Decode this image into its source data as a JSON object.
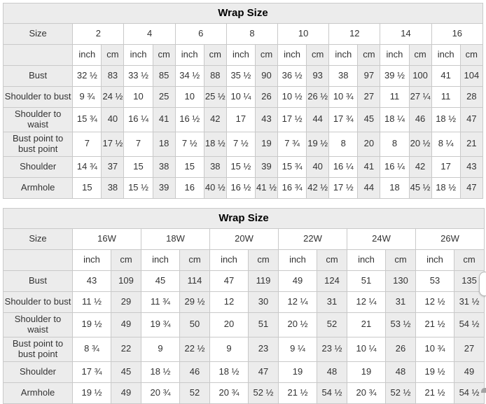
{
  "page": {
    "background": "#ffffff",
    "border_color": "#c9c9c9",
    "header_bg": "#ececec",
    "text_color": "#333333"
  },
  "tables": [
    {
      "title": "Wrap Size",
      "size_label": "Size",
      "units": [
        "inch",
        "cm"
      ],
      "sizes": [
        "2",
        "4",
        "6",
        "8",
        "10",
        "12",
        "14",
        "16"
      ],
      "rows": [
        {
          "label": "Bust",
          "cells": [
            "32 ½",
            "83",
            "33 ½",
            "85",
            "34 ½",
            "88",
            "35 ½",
            "90",
            "36 ½",
            "93",
            "38",
            "97",
            "39 ½",
            "100",
            "41",
            "104"
          ]
        },
        {
          "label": "Shoulder to bust",
          "cells": [
            "9 ¾",
            "24 ½",
            "10",
            "25",
            "10",
            "25 ½",
            "10 ¼",
            "26",
            "10 ½",
            "26 ½",
            "10 ¾",
            "27",
            "11",
            "27 ¼",
            "11",
            "28"
          ]
        },
        {
          "label": "Shoulder to\nwaist",
          "cells": [
            "15 ¾",
            "40",
            "16 ¼",
            "41",
            "16 ½",
            "42",
            "17",
            "43",
            "17 ½",
            "44",
            "17 ¾",
            "45",
            "18 ¼",
            "46",
            "18 ½",
            "47"
          ]
        },
        {
          "label": "Bust point to\nbust point",
          "cells": [
            "7",
            "17 ½",
            "7",
            "18",
            "7 ½",
            "18 ½",
            "7 ½",
            "19",
            "7 ¾",
            "19 ½",
            "8",
            "20",
            "8",
            "20 ½",
            "8 ¼",
            "21"
          ]
        },
        {
          "label": "Shoulder",
          "cells": [
            "14 ¾",
            "37",
            "15",
            "38",
            "15",
            "38",
            "15 ½",
            "39",
            "15 ¾",
            "40",
            "16 ¼",
            "41",
            "16 ¼",
            "42",
            "17",
            "43"
          ]
        },
        {
          "label": "Armhole",
          "cells": [
            "15",
            "38",
            "15 ½",
            "39",
            "16",
            "40 ½",
            "16 ½",
            "41 ½",
            "16 ¾",
            "42 ½",
            "17 ½",
            "44",
            "18",
            "45 ½",
            "18 ½",
            "47"
          ]
        }
      ]
    },
    {
      "title": "Wrap Size",
      "size_label": "Size",
      "units": [
        "inch",
        "cm"
      ],
      "sizes": [
        "16W",
        "18W",
        "20W",
        "22W",
        "24W",
        "26W"
      ],
      "rows": [
        {
          "label": "Bust",
          "cells": [
            "43",
            "109",
            "45",
            "114",
            "47",
            "119",
            "49",
            "124",
            "51",
            "130",
            "53",
            "135"
          ]
        },
        {
          "label": "Shoulder to bust",
          "cells": [
            "11 ½",
            "29",
            "11 ¾",
            "29 ½",
            "12",
            "30",
            "12 ¼",
            "31",
            "12 ¼",
            "31",
            "12 ½",
            "31 ½"
          ]
        },
        {
          "label": "Shoulder to\nwaist",
          "cells": [
            "19 ½",
            "49",
            "19 ¾",
            "50",
            "20",
            "51",
            "20 ½",
            "52",
            "21",
            "53 ½",
            "21 ½",
            "54 ½"
          ]
        },
        {
          "label": "Bust point to\nbust point",
          "cells": [
            "8 ¾",
            "22",
            "9",
            "22 ½",
            "9",
            "23",
            "9 ¼",
            "23 ½",
            "10 ¼",
            "26",
            "10 ¾",
            "27"
          ]
        },
        {
          "label": "Shoulder",
          "cells": [
            "17 ¾",
            "45",
            "18 ½",
            "46",
            "18 ½",
            "47",
            "19",
            "48",
            "19",
            "48",
            "19 ½",
            "49"
          ]
        },
        {
          "label": "Armhole",
          "cells": [
            "19 ½",
            "49",
            "20 ¾",
            "52",
            "20 ¾",
            "52 ½",
            "21 ½",
            "54 ½",
            "20 ¾",
            "52 ½",
            "21 ½",
            "54 ½"
          ]
        }
      ]
    }
  ]
}
